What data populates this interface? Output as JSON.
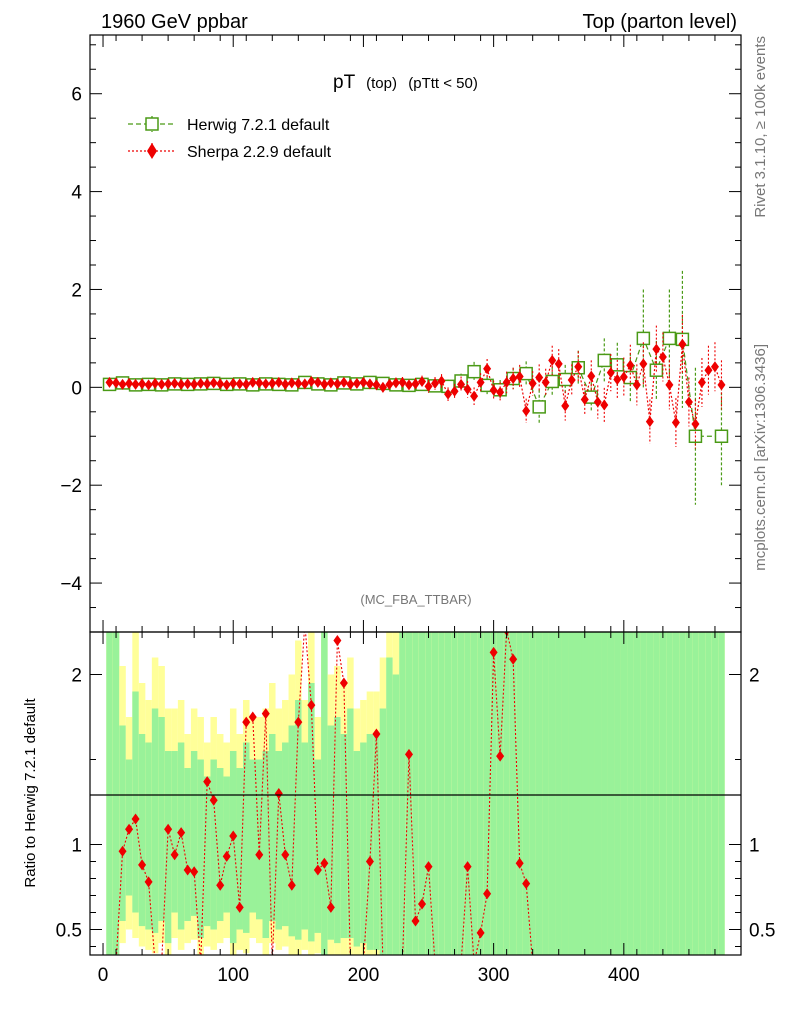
{
  "chart_data": {
    "type": "scatter",
    "header_left": "1960 GeV ppbar",
    "header_right": "Top (parton level)",
    "title_main": "pT",
    "title_sub1": "(top)",
    "title_sub2": "(pTtt < 50)",
    "analysis_id": "(MC_FBA_TTBAR)",
    "side_label_upper": "Rivet 3.1.10, ≥ 100k events",
    "side_label_lower": "mcplots.cern.ch [arXiv:1306.3436]",
    "ratio_ylabel": "Ratio to Herwig 7.2.1 default",
    "xlim": [
      -10,
      490
    ],
    "ylim_main": [
      -5,
      7.2
    ],
    "ylim_ratio": [
      0.35,
      2.25
    ],
    "x_ticks": [
      0,
      100,
      200,
      300,
      400
    ],
    "x_tick_labels": [
      "0",
      "100",
      "200",
      "300",
      "400"
    ],
    "main_y_ticks": [
      -4,
      -2,
      0,
      2,
      4,
      6
    ],
    "main_y_tick_labels": [
      "−4",
      "−2",
      "0",
      "2",
      "4",
      "6"
    ],
    "ratio_y_ticks": [
      0.5,
      1,
      2
    ],
    "ratio_y_tick_labels": [
      "0.5",
      "1",
      "2"
    ],
    "colors": {
      "herwig": "#4a9a16",
      "sherpa": "#ee0000",
      "band_inner": "#99f299",
      "band_outer": "#ffff99"
    },
    "series": [
      {
        "name": "Herwig 7.2.1 default",
        "marker": "open-square",
        "x": [
          5,
          15,
          25,
          35,
          45,
          55,
          65,
          75,
          85,
          95,
          105,
          115,
          125,
          135,
          145,
          155,
          165,
          175,
          185,
          195,
          205,
          215,
          225,
          235,
          245,
          255,
          265,
          275,
          285,
          295,
          305,
          315,
          325,
          335,
          345,
          355,
          365,
          375,
          385,
          395,
          405,
          415,
          425,
          435,
          445,
          455,
          475
        ],
        "y": [
          0.06,
          0.09,
          0.05,
          0.06,
          0.05,
          0.07,
          0.06,
          0.07,
          0.08,
          0.06,
          0.07,
          0.05,
          0.07,
          0.06,
          0.05,
          0.1,
          0.07,
          0.05,
          0.09,
          0.07,
          0.1,
          0.08,
          0.05,
          0.04,
          0.06,
          0.03,
          0.02,
          0.13,
          0.32,
          0.04,
          -0.05,
          0.18,
          0.28,
          -0.4,
          0.12,
          0.16,
          0.4,
          -0.2,
          0.55,
          0.46,
          0.2,
          1.0,
          0.35,
          1.0,
          0.98,
          -1.0,
          -1.0
        ],
        "err": [
          0.05,
          0.05,
          0.05,
          0.05,
          0.05,
          0.05,
          0.05,
          0.05,
          0.05,
          0.05,
          0.05,
          0.06,
          0.06,
          0.06,
          0.06,
          0.06,
          0.07,
          0.07,
          0.08,
          0.08,
          0.09,
          0.1,
          0.1,
          0.1,
          0.12,
          0.13,
          0.14,
          0.15,
          0.2,
          0.18,
          0.2,
          0.22,
          0.25,
          0.35,
          0.3,
          0.3,
          0.35,
          0.3,
          0.45,
          0.45,
          0.5,
          1.0,
          0.6,
          1.0,
          1.4,
          1.4,
          1.0
        ]
      },
      {
        "name": "Sherpa 2.2.9 default",
        "marker": "filled-diamond",
        "x": [
          5,
          10,
          15,
          20,
          25,
          30,
          35,
          40,
          45,
          50,
          55,
          60,
          65,
          70,
          75,
          80,
          85,
          90,
          95,
          100,
          105,
          110,
          115,
          120,
          125,
          130,
          135,
          140,
          145,
          150,
          155,
          160,
          165,
          170,
          175,
          180,
          185,
          190,
          195,
          200,
          205,
          210,
          215,
          220,
          225,
          230,
          235,
          240,
          245,
          250,
          255,
          260,
          265,
          270,
          275,
          280,
          285,
          290,
          295,
          300,
          305,
          310,
          315,
          320,
          325,
          330,
          335,
          340,
          345,
          350,
          355,
          360,
          365,
          370,
          375,
          380,
          385,
          390,
          395,
          400,
          405,
          410,
          415,
          420,
          425,
          430,
          435,
          440,
          445,
          450,
          455,
          460,
          465,
          470,
          475
        ],
        "y": [
          0.1,
          0.09,
          0.06,
          0.08,
          0.06,
          0.07,
          0.05,
          0.08,
          0.06,
          0.07,
          0.08,
          0.06,
          0.07,
          0.06,
          0.08,
          0.07,
          0.09,
          0.07,
          0.05,
          0.08,
          0.07,
          0.06,
          0.1,
          0.09,
          0.07,
          0.08,
          0.1,
          0.06,
          0.09,
          0.08,
          0.07,
          0.12,
          0.1,
          0.06,
          0.09,
          0.07,
          0.1,
          0.06,
          0.08,
          0.1,
          0.07,
          0.05,
          0.0,
          0.06,
          0.09,
          0.1,
          0.05,
          0.07,
          0.12,
          0.02,
          0.08,
          0.13,
          -0.14,
          -0.08,
          0.06,
          -0.04,
          -0.18,
          0.1,
          0.38,
          -0.06,
          -0.1,
          0.1,
          0.18,
          0.22,
          -0.48,
          0.08,
          0.2,
          0.1,
          0.55,
          0.48,
          -0.38,
          0.15,
          0.42,
          -0.25,
          0.23,
          -0.3,
          -0.36,
          0.3,
          0.16,
          0.21,
          0.45,
          0.05,
          0.48,
          -0.7,
          0.78,
          0.62,
          0.05,
          -0.72,
          0.88,
          -0.3,
          -0.75,
          0.1,
          0.35,
          0.42,
          0.05
        ],
        "err": [
          0.05,
          0.05,
          0.05,
          0.05,
          0.05,
          0.05,
          0.05,
          0.05,
          0.05,
          0.05,
          0.05,
          0.05,
          0.05,
          0.05,
          0.05,
          0.05,
          0.05,
          0.05,
          0.06,
          0.06,
          0.06,
          0.06,
          0.06,
          0.06,
          0.06,
          0.06,
          0.06,
          0.07,
          0.07,
          0.07,
          0.07,
          0.07,
          0.07,
          0.08,
          0.08,
          0.08,
          0.08,
          0.08,
          0.09,
          0.09,
          0.09,
          0.1,
          0.1,
          0.1,
          0.11,
          0.11,
          0.11,
          0.12,
          0.12,
          0.13,
          0.13,
          0.14,
          0.14,
          0.15,
          0.16,
          0.17,
          0.18,
          0.19,
          0.2,
          0.2,
          0.2,
          0.22,
          0.22,
          0.24,
          0.25,
          0.25,
          0.27,
          0.28,
          0.3,
          0.3,
          0.3,
          0.32,
          0.32,
          0.32,
          0.32,
          0.34,
          0.35,
          0.38,
          0.4,
          0.4,
          0.42,
          0.42,
          0.44,
          0.45,
          0.48,
          0.5,
          0.5,
          0.5,
          0.6,
          0.5,
          0.5,
          0.5,
          0.5,
          0.5,
          0.5
        ]
      }
    ],
    "ratio_band_width": 5,
    "ratio_bands": {
      "x": [
        5,
        10,
        15,
        20,
        25,
        30,
        35,
        40,
        45,
        50,
        55,
        60,
        65,
        70,
        75,
        80,
        85,
        90,
        95,
        100,
        105,
        110,
        115,
        120,
        125,
        130,
        135,
        140,
        145,
        150,
        155,
        160,
        165,
        170,
        175,
        180,
        185,
        190,
        195,
        200,
        205,
        210,
        215,
        220,
        225,
        230,
        235,
        240,
        245,
        250,
        255,
        260,
        265,
        270,
        275,
        280,
        285,
        290,
        295,
        300,
        305,
        310,
        315,
        320,
        325,
        330,
        335,
        340,
        345,
        350,
        355,
        360,
        365,
        370,
        375,
        380,
        385,
        390,
        395,
        400,
        405,
        410,
        415,
        420,
        425,
        430,
        435,
        440,
        445,
        450,
        455,
        460,
        465,
        470,
        475
      ],
      "inner_low": [
        0.35,
        0.35,
        0.55,
        0.7,
        0.6,
        0.52,
        0.5,
        0.48,
        0.55,
        0.42,
        0.6,
        0.5,
        0.55,
        0.58,
        0.45,
        0.52,
        0.5,
        0.55,
        0.6,
        0.42,
        0.5,
        0.48,
        0.6,
        0.56,
        0.45,
        0.55,
        0.5,
        0.52,
        0.46,
        0.44,
        0.5,
        0.43,
        0.48,
        0.35,
        0.44,
        0.42,
        0.45,
        0.45,
        0.4,
        0.42,
        0.38,
        0.38,
        0.35,
        0.35,
        0.35,
        0.35,
        0.35,
        0.35,
        0.35,
        0.35,
        0.35,
        0.35,
        0.35,
        0.35,
        0.35,
        0.35,
        0.35,
        0.35,
        0.35,
        0.35,
        0.35,
        0.35,
        0.35,
        0.35,
        0.35,
        0.35,
        0.35,
        0.35,
        0.35,
        0.35,
        0.35,
        0.35,
        0.35,
        0.35,
        0.35,
        0.35,
        0.35,
        0.35,
        0.35,
        0.35,
        0.35,
        0.35,
        0.35,
        0.35,
        0.35,
        0.35,
        0.35,
        0.35,
        0.35,
        0.35,
        0.35,
        0.35,
        0.35,
        0.35,
        0.35
      ],
      "inner_high": [
        2.25,
        2.25,
        1.7,
        1.5,
        1.9,
        1.65,
        1.6,
        1.8,
        1.75,
        1.55,
        1.55,
        1.6,
        1.45,
        1.55,
        1.5,
        1.4,
        1.5,
        1.45,
        1.4,
        1.55,
        1.45,
        1.6,
        1.5,
        1.5,
        1.55,
        1.65,
        1.55,
        1.6,
        1.7,
        1.85,
        1.6,
        1.95,
        1.5,
        2.25,
        1.7,
        1.75,
        1.65,
        1.8,
        1.55,
        1.6,
        1.65,
        1.65,
        1.8,
        2.1,
        2.0,
        2.25,
        2.25,
        2.25,
        2.25,
        2.25,
        2.25,
        2.25,
        2.25,
        2.25,
        2.25,
        2.25,
        2.25,
        2.25,
        2.25,
        2.25,
        2.25,
        2.25,
        2.25,
        2.25,
        2.25,
        2.25,
        2.25,
        2.25,
        2.25,
        2.25,
        2.25,
        2.25,
        2.25,
        2.25,
        2.25,
        2.25,
        2.25,
        2.25,
        2.25,
        2.25,
        2.25,
        2.25,
        2.25,
        2.25,
        2.25,
        2.25,
        2.25,
        2.25,
        2.25,
        2.25,
        2.25,
        2.25,
        2.25,
        2.25,
        2.25
      ],
      "outer_low": [
        0.35,
        0.35,
        0.42,
        0.5,
        0.45,
        0.4,
        0.38,
        0.36,
        0.42,
        0.35,
        0.45,
        0.38,
        0.42,
        0.44,
        0.35,
        0.4,
        0.38,
        0.42,
        0.45,
        0.35,
        0.38,
        0.36,
        0.45,
        0.42,
        0.35,
        0.42,
        0.38,
        0.4,
        0.35,
        0.35,
        0.38,
        0.35,
        0.36,
        0.35,
        0.35,
        0.35,
        0.35,
        0.35,
        0.35,
        0.35,
        0.35,
        0.35,
        0.35,
        0.35,
        0.35,
        0.35,
        0.35,
        0.35,
        0.35,
        0.35,
        0.35,
        0.35,
        0.35,
        0.35,
        0.35,
        0.35,
        0.35,
        0.35,
        0.35,
        0.35,
        0.35,
        0.35,
        0.35,
        0.35,
        0.35,
        0.35,
        0.35,
        0.35,
        0.35,
        0.35,
        0.35,
        0.35,
        0.35,
        0.35,
        0.35,
        0.35,
        0.35,
        0.35,
        0.35,
        0.35,
        0.35,
        0.35,
        0.35,
        0.35,
        0.35,
        0.35,
        0.35,
        0.35,
        0.35,
        0.35,
        0.35,
        0.35,
        0.35,
        0.35,
        0.35
      ],
      "outer_high": [
        2.25,
        2.25,
        2.05,
        1.75,
        2.25,
        1.95,
        1.85,
        2.1,
        2.05,
        1.8,
        1.8,
        1.85,
        1.65,
        1.8,
        1.75,
        1.6,
        1.75,
        1.65,
        1.6,
        1.8,
        1.65,
        1.85,
        1.75,
        1.75,
        1.8,
        1.95,
        1.8,
        1.85,
        2.0,
        2.2,
        1.85,
        2.25,
        1.75,
        2.25,
        2.0,
        2.05,
        1.95,
        2.1,
        1.8,
        1.85,
        1.9,
        1.9,
        2.1,
        2.25,
        2.25,
        2.25,
        2.25,
        2.25,
        2.25,
        2.25,
        2.25,
        2.25,
        2.25,
        2.25,
        2.25,
        2.25,
        2.25,
        2.25,
        2.25,
        2.25,
        2.25,
        2.25,
        2.25,
        2.25,
        2.25,
        2.25,
        2.25,
        2.25,
        2.25,
        2.25,
        2.25,
        2.25,
        2.25,
        2.25,
        2.25,
        2.25,
        2.25,
        2.25,
        2.25,
        2.25,
        2.25,
        2.25,
        2.25,
        2.25,
        2.25,
        2.25,
        2.25,
        2.25,
        2.25,
        2.25,
        2.25,
        2.25,
        2.25,
        2.25,
        2.25
      ]
    },
    "ratio_points": {
      "x": [
        5,
        10,
        15,
        20,
        25,
        30,
        35,
        40,
        45,
        50,
        55,
        60,
        65,
        70,
        75,
        80,
        85,
        90,
        95,
        100,
        105,
        110,
        115,
        120,
        125,
        130,
        135,
        140,
        145,
        150,
        155,
        160,
        165,
        170,
        175,
        180,
        185,
        190,
        195,
        200,
        205,
        210,
        215,
        220,
        225,
        230,
        235,
        240,
        245,
        250,
        255,
        260,
        265,
        270,
        275,
        280,
        285,
        290,
        295,
        300,
        305,
        310,
        315,
        320,
        325,
        330,
        335,
        340,
        345,
        350,
        355,
        360,
        365,
        370,
        375,
        380,
        385,
        390,
        395,
        400,
        405,
        410,
        415,
        420,
        425,
        430,
        435,
        440,
        445,
        450,
        455,
        460,
        465,
        470,
        475
      ],
      "y": [
        0.3,
        0.3,
        0.96,
        1.09,
        1.15,
        0.88,
        0.78,
        0.3,
        0.3,
        1.09,
        0.94,
        1.07,
        0.85,
        0.84,
        0.3,
        1.37,
        1.26,
        0.76,
        0.93,
        1.05,
        0.63,
        1.72,
        1.75,
        0.94,
        1.77,
        0.3,
        1.3,
        0.94,
        0.76,
        1.72,
        2.3,
        1.82,
        0.85,
        0.89,
        0.63,
        2.2,
        1.95,
        0.3,
        0.3,
        0.3,
        0.9,
        1.65,
        0.3,
        0.3,
        0.3,
        0.3,
        1.53,
        0.55,
        0.65,
        0.87,
        0.3,
        0.3,
        0.3,
        0.3,
        0.3,
        0.87,
        0.3,
        0.48,
        0.71,
        2.13,
        1.52,
        2.26,
        2.09,
        0.89,
        0.77,
        0.3,
        0.3,
        0.3,
        0.3,
        0.3,
        0.3,
        0.3,
        0.3,
        0.3,
        0.3,
        0.3,
        0.3,
        0.3,
        0.3,
        0.3,
        0.3,
        0.3,
        0.3,
        0.3,
        0.3,
        0.3,
        0.3,
        0.3,
        0.3,
        0.3,
        0.3,
        0.3,
        0.3,
        0.3,
        0.3
      ],
      "shown": [
        false,
        false,
        true,
        true,
        true,
        true,
        true,
        false,
        false,
        true,
        true,
        true,
        true,
        true,
        false,
        true,
        true,
        true,
        true,
        true,
        true,
        true,
        true,
        true,
        true,
        false,
        true,
        true,
        true,
        true,
        true,
        true,
        true,
        true,
        true,
        true,
        true,
        false,
        false,
        false,
        true,
        true,
        false,
        false,
        false,
        false,
        true,
        true,
        true,
        true,
        false,
        false,
        false,
        false,
        false,
        true,
        false,
        true,
        true,
        true,
        true,
        true,
        true,
        true,
        true,
        false,
        false,
        false,
        false,
        false,
        false,
        false,
        false,
        false,
        false,
        false,
        false,
        false,
        false,
        false,
        false,
        false,
        false,
        false,
        false,
        false,
        false,
        false,
        false,
        false,
        false,
        false,
        false,
        false,
        false
      ]
    }
  }
}
